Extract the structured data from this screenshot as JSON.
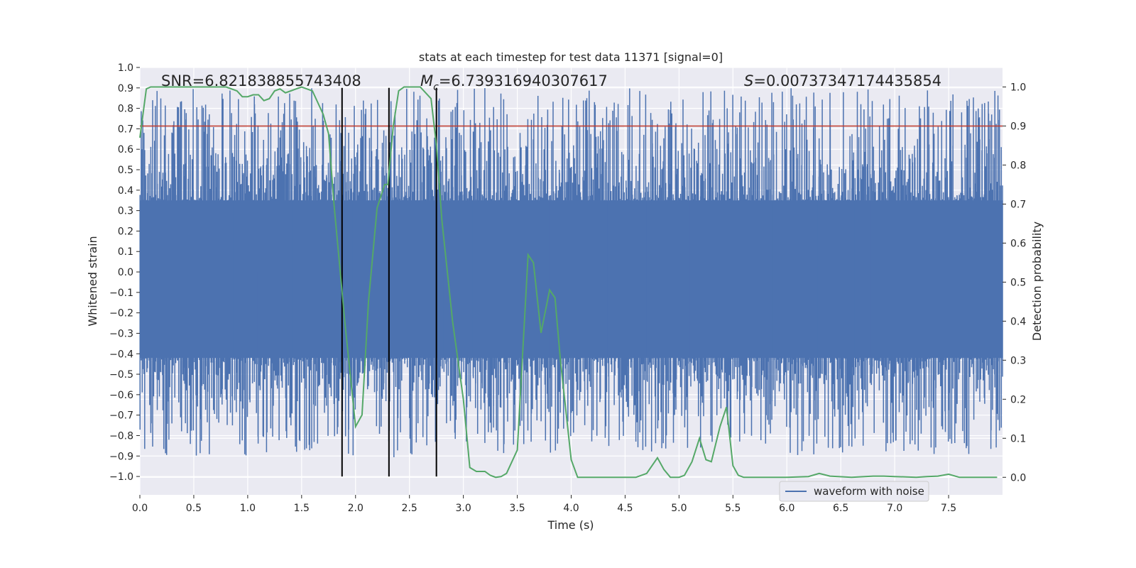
{
  "chart_data": {
    "type": "line",
    "title": "stats at each timestep for test data 11371 [signal=0]",
    "xlabel": "Time (s)",
    "ylabel": "Whitened strain",
    "y2label": "Detection probability",
    "xlim": [
      0.0,
      8.0
    ],
    "ylim": [
      -1.09,
      1.0
    ],
    "y2lim": [
      -0.045,
      1.05
    ],
    "x_ticks": [
      "0.0",
      "0.5",
      "1.0",
      "1.5",
      "2.0",
      "2.5",
      "3.0",
      "3.5",
      "4.0",
      "4.5",
      "5.0",
      "5.5",
      "6.0",
      "6.5",
      "7.0",
      "7.5"
    ],
    "y_ticks": [
      "1.0",
      "0.9",
      "0.8",
      "0.7",
      "0.6",
      "0.5",
      "0.4",
      "0.3",
      "0.2",
      "0.1",
      "0.0",
      "−0.1",
      "−0.2",
      "−0.3",
      "−0.4",
      "−0.5",
      "−0.6",
      "−0.7",
      "−0.8",
      "−0.9",
      "−1.0"
    ],
    "y2_ticks": [
      "1.0",
      "0.9",
      "0.8",
      "0.7",
      "0.6",
      "0.5",
      "0.4",
      "0.3",
      "0.2",
      "0.1",
      "0.0"
    ],
    "annotations": {
      "snr": "SNR=6.821838855743408",
      "mc_symbol": "M",
      "mc_sub": "c",
      "mc_value": "=6.739316940307617",
      "s_symbol": "S",
      "s_value": "=0.00737347174435854"
    },
    "threshold": {
      "y": 0.9,
      "axis": "right",
      "color": "#c0392b"
    },
    "vertical_markers": [
      1.875,
      2.31,
      2.75
    ],
    "legend": {
      "label": "waveform with noise",
      "location": "lower-right"
    },
    "series": [
      {
        "name": "waveform with noise",
        "axis": "left",
        "color": "#4c72b0",
        "kind": "noise",
        "dense_band": [
          -0.42,
          0.35
        ],
        "spike_range": [
          -0.9,
          0.9
        ]
      },
      {
        "name": "detection probability",
        "axis": "right",
        "color": "#55a868",
        "x": [
          0.0,
          0.06,
          0.1,
          0.2,
          0.4,
          0.6,
          0.8,
          0.9,
          0.95,
          1.0,
          1.05,
          1.1,
          1.15,
          1.2,
          1.25,
          1.3,
          1.35,
          1.4,
          1.45,
          1.5,
          1.6,
          1.7,
          1.75,
          1.8,
          1.9,
          2.0,
          2.06,
          2.12,
          2.2,
          2.27,
          2.3,
          2.35,
          2.4,
          2.45,
          2.5,
          2.6,
          2.7,
          2.75,
          2.8,
          2.9,
          3.0,
          3.06,
          3.12,
          3.2,
          3.25,
          3.3,
          3.35,
          3.4,
          3.5,
          3.6,
          3.65,
          3.72,
          3.8,
          3.85,
          3.9,
          4.0,
          4.06,
          4.2,
          4.4,
          4.6,
          4.7,
          4.8,
          4.86,
          4.92,
          5.0,
          5.05,
          5.12,
          5.19,
          5.25,
          5.3,
          5.38,
          5.44,
          5.5,
          5.55,
          5.6,
          5.8,
          6.0,
          6.2,
          6.3,
          6.4,
          6.6,
          6.8,
          6.9,
          7.0,
          7.2,
          7.3,
          7.4,
          7.5,
          7.6,
          7.7,
          7.95
        ],
        "values": [
          0.87,
          0.995,
          1.0,
          1.0,
          1.0,
          1.0,
          1.0,
          0.99,
          0.975,
          0.975,
          0.98,
          0.98,
          0.965,
          0.97,
          0.99,
          0.995,
          0.985,
          0.99,
          0.995,
          1.0,
          0.99,
          0.93,
          0.88,
          0.7,
          0.4,
          0.13,
          0.16,
          0.45,
          0.69,
          0.75,
          0.75,
          0.9,
          0.99,
          1.0,
          1.0,
          1.0,
          0.97,
          0.85,
          0.66,
          0.4,
          0.2,
          0.025,
          0.015,
          0.015,
          0.005,
          0.0,
          0.002,
          0.01,
          0.07,
          0.57,
          0.55,
          0.37,
          0.48,
          0.46,
          0.3,
          0.045,
          0.0,
          0.0,
          0.0,
          0.0,
          0.01,
          0.05,
          0.02,
          0.0,
          0.0,
          0.005,
          0.04,
          0.1,
          0.045,
          0.04,
          0.13,
          0.18,
          0.03,
          0.005,
          0.0,
          0.0,
          0.0,
          0.002,
          0.01,
          0.003,
          0.0,
          0.003,
          0.003,
          0.002,
          0.0,
          0.002,
          0.003,
          0.008,
          0.0,
          0.0,
          0.0
        ]
      }
    ]
  }
}
